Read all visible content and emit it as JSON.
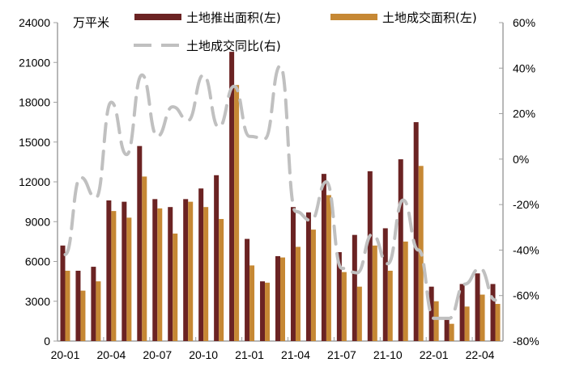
{
  "chart_data": {
    "type": "bar+line",
    "title": "",
    "left_unit": "万平米",
    "xlabel": "",
    "ylabel_left": "万平米",
    "ylabel_right": "",
    "ylim_left": [
      0,
      24000
    ],
    "ylim_right": [
      -80,
      60
    ],
    "yticks_left": [
      0,
      3000,
      6000,
      9000,
      12000,
      15000,
      18000,
      21000,
      24000
    ],
    "yticks_right": [
      "-80%",
      "-60%",
      "-40%",
      "-20%",
      "0%",
      "20%",
      "40%",
      "60%"
    ],
    "yticks_right_values": [
      -80,
      -60,
      -40,
      -20,
      0,
      20,
      40,
      60
    ],
    "xtick_labels": [
      "20-01",
      "20-04",
      "20-07",
      "20-10",
      "21-01",
      "21-04",
      "21-07",
      "21-10",
      "22-01",
      "22-04"
    ],
    "categories": [
      "20-01",
      "20-02",
      "20-03",
      "20-04",
      "20-05",
      "20-06",
      "20-07",
      "20-08",
      "20-09",
      "20-10",
      "20-11",
      "20-12",
      "21-01",
      "21-02",
      "21-03",
      "21-04",
      "21-05",
      "21-06",
      "21-07",
      "21-08",
      "21-09",
      "21-10",
      "21-11",
      "21-12",
      "22-01",
      "22-02",
      "22-03",
      "22-04",
      "22-05"
    ],
    "grid": false,
    "legend_position": "top",
    "series": [
      {
        "name": "土地推出面积(左)",
        "type": "bar",
        "axis": "left",
        "color": "#6B2323",
        "values": [
          7200,
          5300,
          5600,
          10600,
          10500,
          14700,
          10700,
          10100,
          10700,
          11500,
          12500,
          21800,
          7700,
          4500,
          6400,
          10100,
          9700,
          12600,
          6700,
          8000,
          12800,
          8500,
          13700,
          16500,
          4100,
          1600,
          4300,
          5100,
          4300
        ]
      },
      {
        "name": "土地成交面积(左)",
        "type": "bar",
        "axis": "left",
        "color": "#C68834",
        "values": [
          5300,
          3800,
          4500,
          9800,
          9300,
          12400,
          10000,
          8100,
          10500,
          10100,
          9200,
          19300,
          5700,
          4400,
          6300,
          7100,
          8400,
          11000,
          5200,
          4100,
          7200,
          5300,
          7500,
          13200,
          3000,
          1300,
          2600,
          3500,
          2800
        ]
      },
      {
        "name": "土地成交同比(右)",
        "type": "line",
        "axis": "right",
        "color": "#C0C0C0",
        "dash": true,
        "values": [
          -42,
          -8,
          -17,
          25,
          2,
          37,
          10,
          23,
          17,
          37,
          14,
          32,
          10,
          9,
          41,
          -23,
          -27,
          -10,
          -48,
          -50,
          -33,
          -46,
          -18,
          -40,
          -70,
          -70,
          -55,
          -48,
          -62
        ]
      }
    ]
  },
  "legend": {
    "item1": "土地推出面积(左)",
    "item2": "土地成交面积(左)",
    "item3": "土地成交同比(右)"
  },
  "colors": {
    "push": "#6B2323",
    "deal": "#C68834",
    "yoy": "#C0C0C0",
    "axis": "#A0A0A0"
  }
}
